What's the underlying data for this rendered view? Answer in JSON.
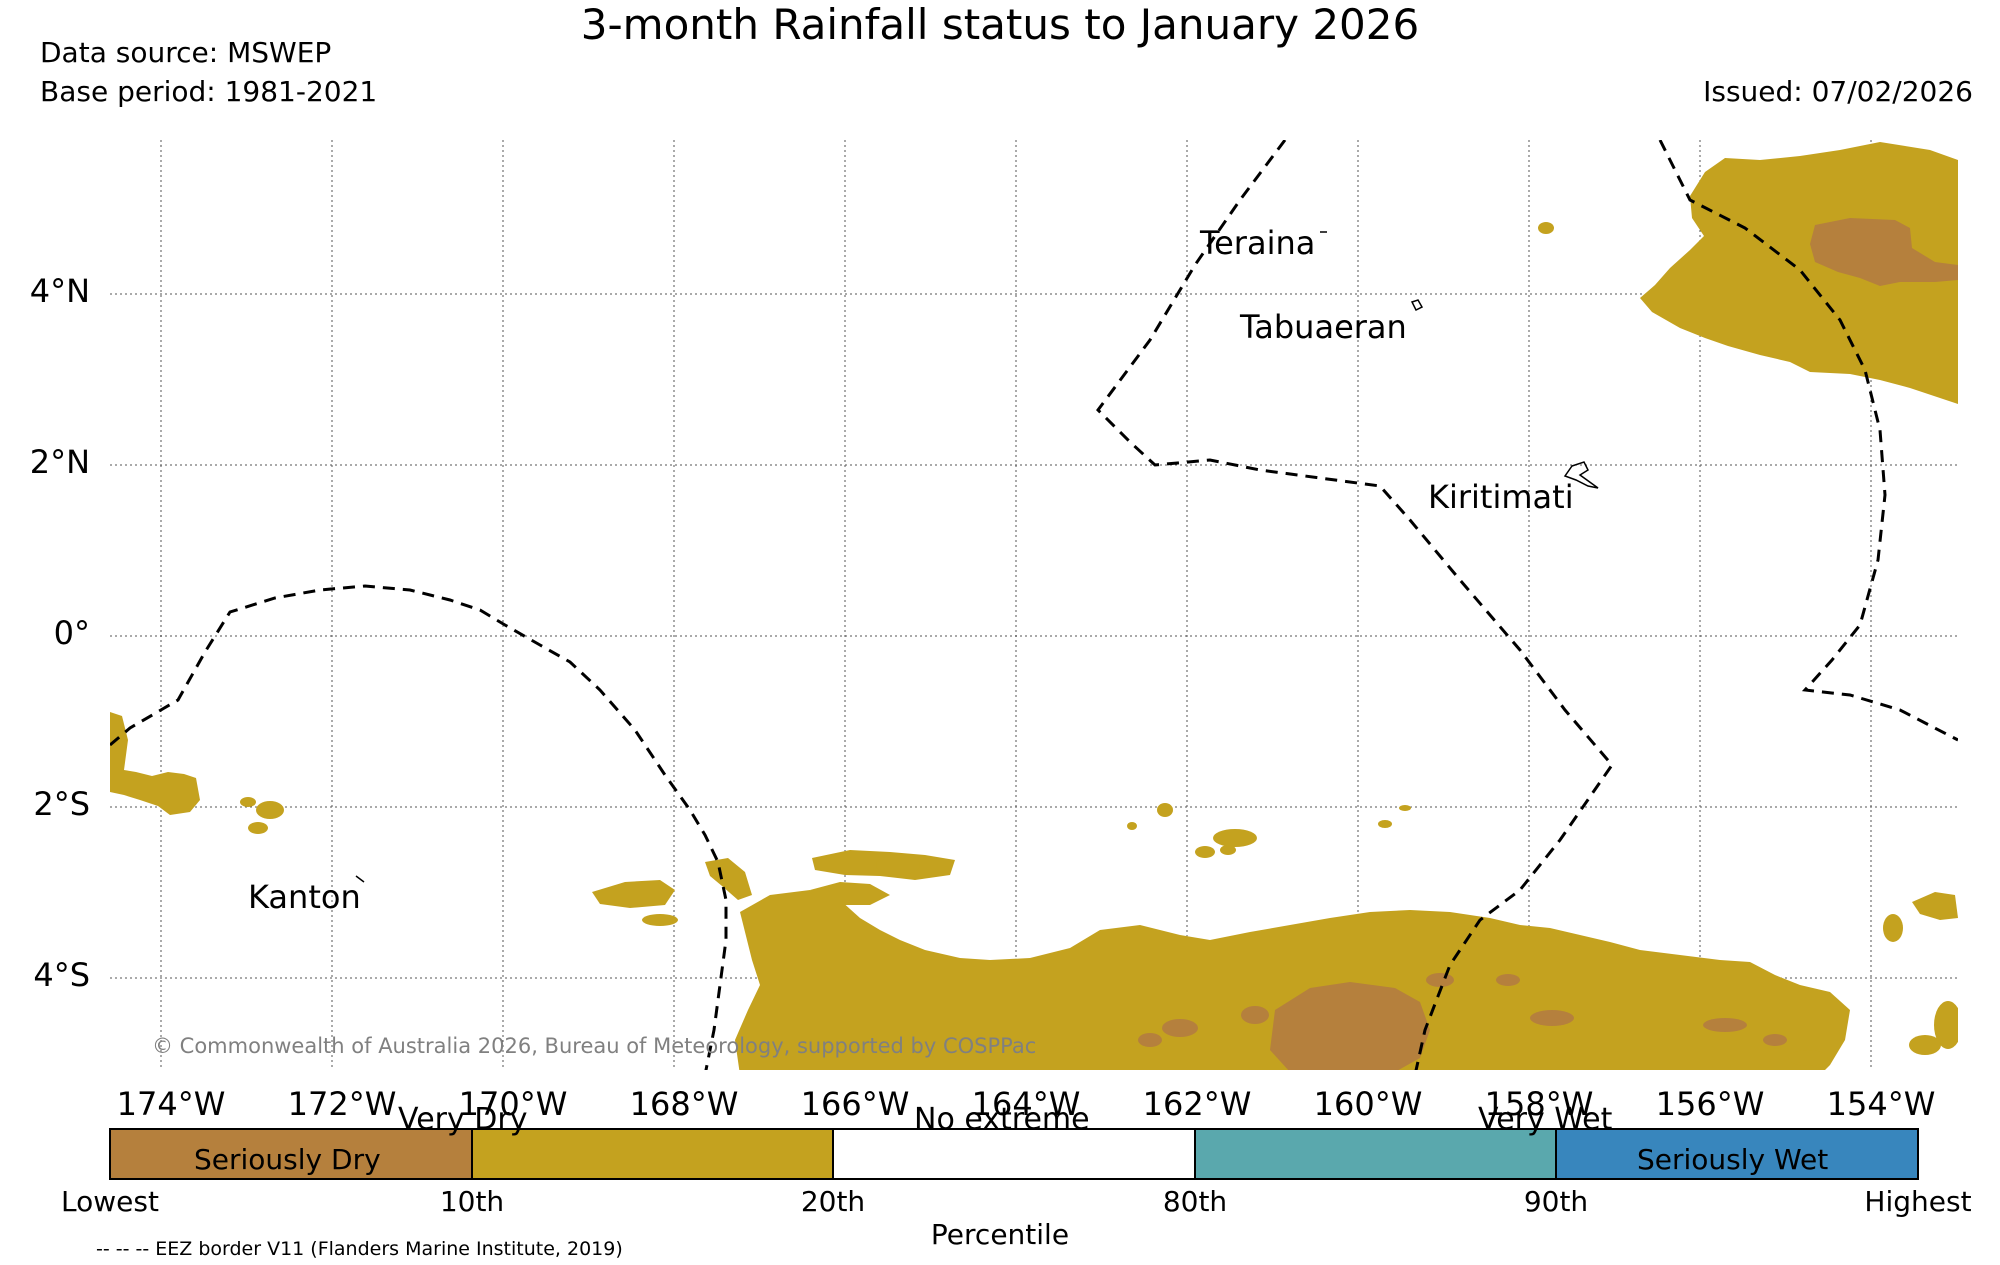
{
  "title": "3-month Rainfall status to January 2026",
  "data_source": "Data source: MSWEP",
  "base_period": "Base period: 1981-2021",
  "issued": "Issued: 07/02/2026",
  "copyright": "© Commonwealth of Australia 2026, Bureau of Meteorology, supported by COSPPac",
  "latitude_labels": [
    "4°N",
    "2°N",
    "0°",
    "2°S",
    "4°S"
  ],
  "longitude_labels": [
    "174°W",
    "172°W",
    "170°W",
    "168°W",
    "166°W",
    "164°W",
    "162°W",
    "160°W",
    "158°W",
    "156°W",
    "154°W"
  ],
  "places": [
    "Teraina",
    "Tabuaeran",
    "Kiritimati",
    "Kanton"
  ],
  "colorbar": {
    "categories": [
      {
        "label": "Seriously Dry",
        "color": "#b5803d"
      },
      {
        "label": "Very Dry",
        "color": "#c4a21f"
      },
      {
        "label": "No extreme",
        "color": "#ffffff"
      },
      {
        "label": "Very Wet",
        "color": "#5aa8ad"
      },
      {
        "label": "Seriously Wet",
        "color": "#3886bd"
      }
    ],
    "ticks": [
      "Lowest",
      "10th",
      "20th",
      "80th",
      "90th",
      "Highest"
    ],
    "axis_label": "Percentile"
  },
  "legend_note": "-- -- -- EEZ border V11 (Flanders Marine Institute, 2019)"
}
